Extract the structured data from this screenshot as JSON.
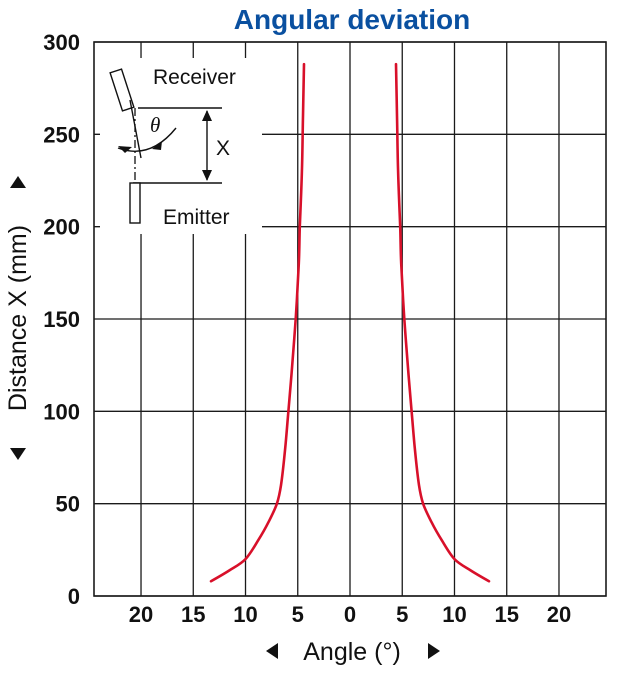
{
  "chart_data": {
    "type": "line",
    "title": "Angular deviation",
    "xlabel": "Angle (°)",
    "ylabel": "Distance X (mm)",
    "xlim": [
      -24.5,
      24.5
    ],
    "ylim": [
      0,
      300
    ],
    "x_tick_values": [
      -20,
      -15,
      -10,
      -5,
      0,
      5,
      10,
      15,
      20
    ],
    "x_tick_labels": [
      "20",
      "15",
      "10",
      "5",
      "0",
      "5",
      "10",
      "15",
      "20"
    ],
    "y_ticks": [
      0,
      50,
      100,
      150,
      200,
      250,
      300
    ],
    "grid": true,
    "colors": {
      "curve": "#d8102a",
      "grid": "#1a1a1a",
      "title": "#0a50a0"
    },
    "series": [
      {
        "values": [
          {
            "x": -13.3,
            "y": 8
          },
          {
            "x": -11.5,
            "y": 14
          },
          {
            "x": -10.0,
            "y": 20
          },
          {
            "x": -8.8,
            "y": 30
          },
          {
            "x": -7.8,
            "y": 40
          },
          {
            "x": -7.0,
            "y": 50
          },
          {
            "x": -6.6,
            "y": 60
          },
          {
            "x": -6.2,
            "y": 80
          },
          {
            "x": -5.9,
            "y": 100
          },
          {
            "x": -5.6,
            "y": 120
          },
          {
            "x": -5.2,
            "y": 150
          },
          {
            "x": -4.9,
            "y": 180
          },
          {
            "x": -4.8,
            "y": 200
          },
          {
            "x": -4.6,
            "y": 230
          },
          {
            "x": -4.5,
            "y": 260
          },
          {
            "x": -4.4,
            "y": 288
          }
        ]
      },
      {
        "values": [
          {
            "x": 13.3,
            "y": 8
          },
          {
            "x": 11.5,
            "y": 14
          },
          {
            "x": 10.0,
            "y": 20
          },
          {
            "x": 8.8,
            "y": 30
          },
          {
            "x": 7.8,
            "y": 40
          },
          {
            "x": 7.0,
            "y": 50
          },
          {
            "x": 6.6,
            "y": 60
          },
          {
            "x": 6.2,
            "y": 80
          },
          {
            "x": 5.9,
            "y": 100
          },
          {
            "x": 5.6,
            "y": 120
          },
          {
            "x": 5.2,
            "y": 150
          },
          {
            "x": 4.9,
            "y": 180
          },
          {
            "x": 4.8,
            "y": 200
          },
          {
            "x": 4.6,
            "y": 230
          },
          {
            "x": 4.5,
            "y": 260
          },
          {
            "x": 4.4,
            "y": 288
          }
        ]
      }
    ]
  },
  "inset": {
    "receiver_label": "Receiver",
    "emitter_label": "Emitter",
    "distance_label": "X",
    "angle_symbol": "θ"
  }
}
